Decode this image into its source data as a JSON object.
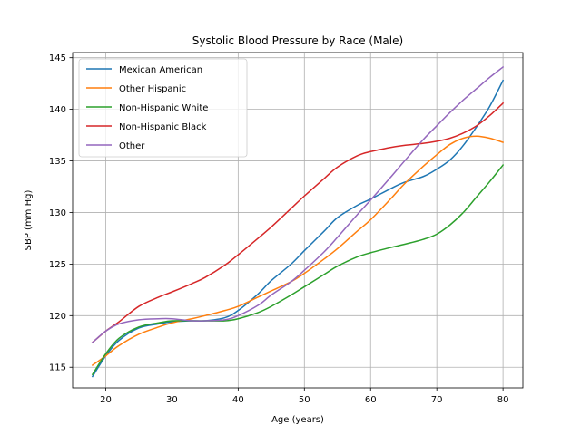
{
  "chart_data": {
    "type": "line",
    "title": "Systolic Blood Pressure by Race (Male)",
    "xlabel": "Age (years)",
    "ylabel": "SBP (mm Hg)",
    "xlim": [
      15,
      83
    ],
    "ylim": [
      113,
      145.5
    ],
    "xticks": [
      20,
      30,
      40,
      50,
      60,
      70,
      80
    ],
    "yticks": [
      115,
      120,
      125,
      130,
      135,
      140,
      145
    ],
    "grid": true,
    "legend_position": "top-left",
    "x": [
      18,
      20,
      22,
      25,
      28,
      30,
      33,
      35,
      38,
      40,
      43,
      45,
      48,
      50,
      53,
      55,
      58,
      60,
      63,
      65,
      68,
      70,
      72,
      74,
      76,
      78,
      80
    ],
    "series": [
      {
        "name": "Mexican American",
        "color": "#1f77b4",
        "values": [
          114.1,
          116.1,
          117.6,
          118.8,
          119.2,
          119.4,
          119.5,
          119.5,
          119.8,
          120.5,
          122.1,
          123.4,
          125.0,
          126.3,
          128.2,
          129.5,
          130.7,
          131.3,
          132.3,
          132.9,
          133.5,
          134.2,
          135.1,
          136.5,
          138.3,
          140.3,
          142.8
        ]
      },
      {
        "name": "Other Hispanic",
        "color": "#ff7f0e",
        "values": [
          115.2,
          116.1,
          117.1,
          118.2,
          118.9,
          119.3,
          119.7,
          120.0,
          120.5,
          120.9,
          121.8,
          122.4,
          123.3,
          124.1,
          125.5,
          126.5,
          128.2,
          129.3,
          131.3,
          132.7,
          134.5,
          135.6,
          136.6,
          137.2,
          137.4,
          137.2,
          136.8
        ]
      },
      {
        "name": "Non-Hispanic White",
        "color": "#2ca02c",
        "values": [
          114.3,
          116.3,
          117.8,
          118.9,
          119.3,
          119.5,
          119.5,
          119.5,
          119.5,
          119.7,
          120.3,
          120.9,
          122.0,
          122.8,
          124.0,
          124.8,
          125.7,
          126.1,
          126.6,
          126.9,
          127.4,
          127.9,
          128.8,
          130.0,
          131.5,
          133.0,
          134.6
        ]
      },
      {
        "name": "Non-Hispanic Black",
        "color": "#d62728",
        "values": [
          117.4,
          118.5,
          119.4,
          120.9,
          121.8,
          122.3,
          123.1,
          123.7,
          124.9,
          125.9,
          127.5,
          128.6,
          130.4,
          131.6,
          133.3,
          134.4,
          135.5,
          135.9,
          136.3,
          136.5,
          136.7,
          136.9,
          137.2,
          137.7,
          138.4,
          139.4,
          140.6
        ]
      },
      {
        "name": "Other",
        "color": "#9467bd",
        "values": [
          117.4,
          118.5,
          119.2,
          119.6,
          119.7,
          119.7,
          119.5,
          119.5,
          119.6,
          120.0,
          121.0,
          122.0,
          123.3,
          124.4,
          126.2,
          127.6,
          129.8,
          131.2,
          133.4,
          134.9,
          137.1,
          138.4,
          139.7,
          140.9,
          142.0,
          143.1,
          144.1
        ]
      }
    ]
  }
}
